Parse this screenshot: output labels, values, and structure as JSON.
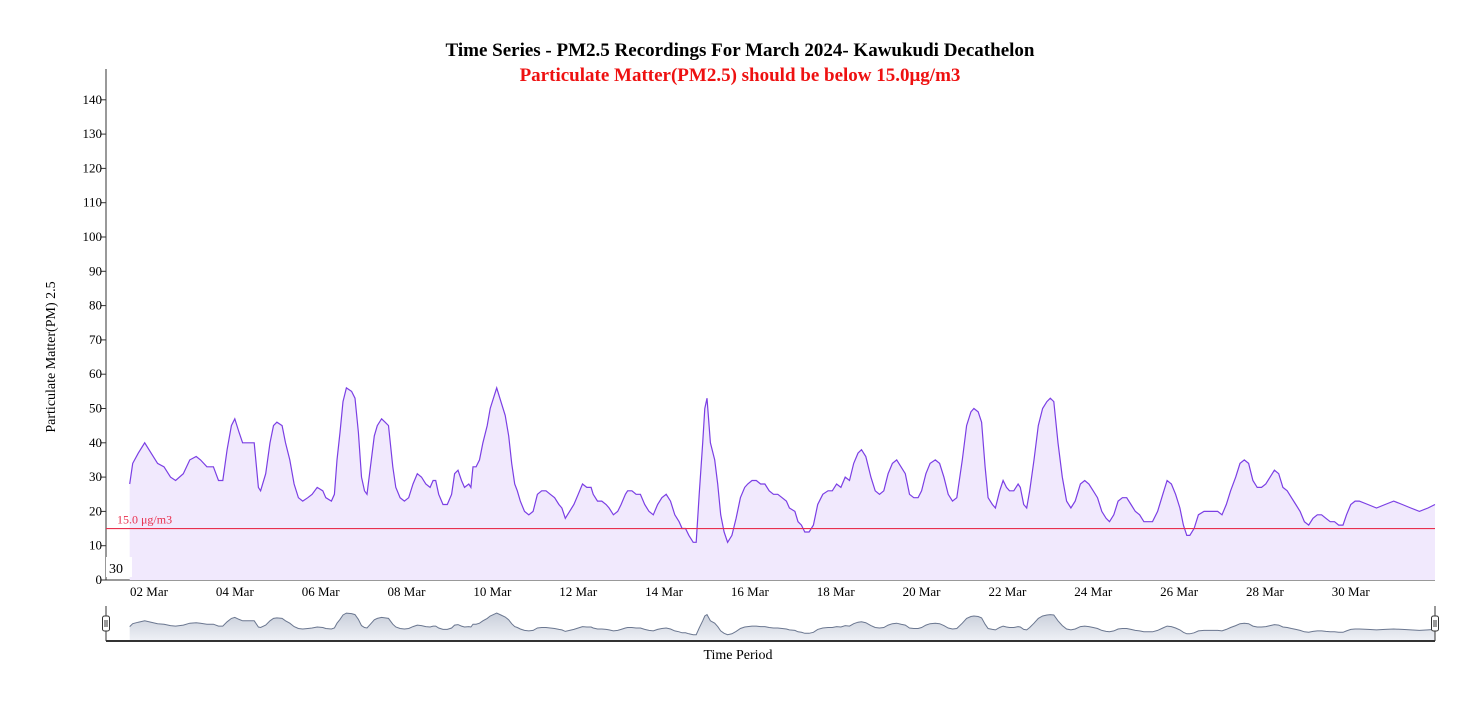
{
  "chart_data": {
    "type": "area",
    "title": "Time Series - PM2.5 Recordings For March 2024- Kawukudi Decathelon",
    "subtitle": "Particulate Matter(PM2.5) should be below 15.0μg/m3",
    "ylabel": "Particulate Matter(PM) 2.5",
    "xlabel": "Time Period",
    "ylim": [
      0,
      140
    ],
    "xlim_days": [
      1.55,
      32.0
    ],
    "yticks": [
      "0",
      "10",
      "20",
      "30",
      "40",
      "50",
      "60",
      "70",
      "80",
      "90",
      "100",
      "110",
      "120",
      "130",
      "140"
    ],
    "xticks": [
      {
        "day": 2,
        "label": "02 Mar"
      },
      {
        "day": 4,
        "label": "04 Mar"
      },
      {
        "day": 6,
        "label": "06 Mar"
      },
      {
        "day": 8,
        "label": "08 Mar"
      },
      {
        "day": 10,
        "label": "10 Mar"
      },
      {
        "day": 12,
        "label": "12 Mar"
      },
      {
        "day": 14,
        "label": "14 Mar"
      },
      {
        "day": 16,
        "label": "16 Mar"
      },
      {
        "day": 18,
        "label": "18 Mar"
      },
      {
        "day": 20,
        "label": "20 Mar"
      },
      {
        "day": 22,
        "label": "22 Mar"
      },
      {
        "day": 24,
        "label": "24 Mar"
      },
      {
        "day": 26,
        "label": "26 Mar"
      },
      {
        "day": 28,
        "label": "28 Mar"
      },
      {
        "day": 30,
        "label": "30 Mar"
      }
    ],
    "threshold": {
      "value": 15.0,
      "label": "15.0 μg/m3"
    },
    "hover_label": "30",
    "colors": {
      "line": "#7b3fe4",
      "fill": "#f1e9fd",
      "threshold": "#e8304e",
      "subtitle": "#ee1111",
      "navigator": "#6b7790"
    },
    "series": [
      {
        "points": [
          [
            1.55,
            28
          ],
          [
            1.62,
            34
          ],
          [
            1.75,
            37
          ],
          [
            1.9,
            40
          ],
          [
            2.05,
            37
          ],
          [
            2.2,
            34
          ],
          [
            2.35,
            33
          ],
          [
            2.5,
            30
          ],
          [
            2.62,
            29
          ],
          [
            2.8,
            31
          ],
          [
            2.95,
            35
          ],
          [
            3.1,
            36
          ],
          [
            3.2,
            35
          ],
          [
            3.35,
            33
          ],
          [
            3.5,
            33
          ],
          [
            3.62,
            29
          ],
          [
            3.72,
            29
          ],
          [
            3.82,
            38
          ],
          [
            3.92,
            45
          ],
          [
            4.0,
            47
          ],
          [
            4.1,
            43
          ],
          [
            4.18,
            40
          ],
          [
            4.35,
            40
          ],
          [
            4.45,
            40
          ],
          [
            4.55,
            27
          ],
          [
            4.6,
            26
          ],
          [
            4.72,
            31
          ],
          [
            4.82,
            40
          ],
          [
            4.9,
            45
          ],
          [
            4.98,
            46
          ],
          [
            5.1,
            45
          ],
          [
            5.18,
            40
          ],
          [
            5.28,
            35
          ],
          [
            5.38,
            28
          ],
          [
            5.48,
            24
          ],
          [
            5.58,
            23
          ],
          [
            5.7,
            24
          ],
          [
            5.8,
            25
          ],
          [
            5.92,
            27
          ],
          [
            6.05,
            26
          ],
          [
            6.12,
            24
          ],
          [
            6.25,
            23
          ],
          [
            6.32,
            25
          ],
          [
            6.38,
            35
          ],
          [
            6.45,
            43
          ],
          [
            6.52,
            52
          ],
          [
            6.6,
            56
          ],
          [
            6.72,
            55
          ],
          [
            6.8,
            53
          ],
          [
            6.88,
            43
          ],
          [
            6.95,
            30
          ],
          [
            7.02,
            26
          ],
          [
            7.08,
            25
          ],
          [
            7.18,
            35
          ],
          [
            7.25,
            42
          ],
          [
            7.32,
            45
          ],
          [
            7.42,
            47
          ],
          [
            7.5,
            46
          ],
          [
            7.58,
            45
          ],
          [
            7.68,
            33
          ],
          [
            7.75,
            27
          ],
          [
            7.85,
            24
          ],
          [
            7.95,
            23
          ],
          [
            8.05,
            24
          ],
          [
            8.15,
            28
          ],
          [
            8.25,
            31
          ],
          [
            8.35,
            30
          ],
          [
            8.45,
            28
          ],
          [
            8.55,
            27
          ],
          [
            8.62,
            29
          ],
          [
            8.68,
            29
          ],
          [
            8.75,
            25
          ],
          [
            8.85,
            22
          ],
          [
            8.95,
            22
          ],
          [
            9.05,
            25
          ],
          [
            9.12,
            31
          ],
          [
            9.2,
            32
          ],
          [
            9.28,
            29
          ],
          [
            9.35,
            27
          ],
          [
            9.45,
            28
          ],
          [
            9.5,
            27
          ],
          [
            9.55,
            33
          ],
          [
            9.62,
            33
          ],
          [
            9.7,
            35
          ],
          [
            9.78,
            40
          ],
          [
            9.88,
            45
          ],
          [
            9.95,
            50
          ],
          [
            10.05,
            54
          ],
          [
            10.1,
            56
          ],
          [
            10.2,
            52
          ],
          [
            10.3,
            48
          ],
          [
            10.38,
            42
          ],
          [
            10.45,
            34
          ],
          [
            10.52,
            28
          ],
          [
            10.58,
            26
          ],
          [
            10.65,
            23
          ],
          [
            10.75,
            20
          ],
          [
            10.85,
            19
          ],
          [
            10.95,
            20
          ],
          [
            11.05,
            25
          ],
          [
            11.15,
            26
          ],
          [
            11.25,
            26
          ],
          [
            11.35,
            25
          ],
          [
            11.45,
            24
          ],
          [
            11.55,
            22
          ],
          [
            11.62,
            21
          ],
          [
            11.7,
            18
          ],
          [
            11.8,
            20
          ],
          [
            11.9,
            22
          ],
          [
            12.0,
            25
          ],
          [
            12.1,
            28
          ],
          [
            12.2,
            27
          ],
          [
            12.3,
            27
          ],
          [
            12.35,
            25
          ],
          [
            12.45,
            23
          ],
          [
            12.55,
            23
          ],
          [
            12.65,
            22
          ],
          [
            12.72,
            21
          ],
          [
            12.82,
            19
          ],
          [
            12.92,
            20
          ],
          [
            13.0,
            22
          ],
          [
            13.1,
            25
          ],
          [
            13.15,
            26
          ],
          [
            13.25,
            26
          ],
          [
            13.35,
            25
          ],
          [
            13.45,
            25
          ],
          [
            13.55,
            22
          ],
          [
            13.65,
            20
          ],
          [
            13.75,
            19
          ],
          [
            13.85,
            22
          ],
          [
            13.95,
            24
          ],
          [
            14.05,
            25
          ],
          [
            14.15,
            23
          ],
          [
            14.25,
            19
          ],
          [
            14.35,
            17
          ],
          [
            14.42,
            15
          ],
          [
            14.5,
            15
          ],
          [
            14.58,
            13
          ],
          [
            14.68,
            11
          ],
          [
            14.75,
            11
          ],
          [
            14.82,
            25
          ],
          [
            14.9,
            40
          ],
          [
            14.95,
            50
          ],
          [
            15.0,
            53
          ],
          [
            15.08,
            40
          ],
          [
            15.18,
            35
          ],
          [
            15.25,
            28
          ],
          [
            15.32,
            19
          ],
          [
            15.4,
            14
          ],
          [
            15.48,
            11
          ],
          [
            15.58,
            13
          ],
          [
            15.68,
            18
          ],
          [
            15.78,
            24
          ],
          [
            15.88,
            27
          ],
          [
            15.95,
            28
          ],
          [
            16.05,
            29
          ],
          [
            16.15,
            29
          ],
          [
            16.25,
            28
          ],
          [
            16.35,
            28
          ],
          [
            16.45,
            26
          ],
          [
            16.55,
            25
          ],
          [
            16.65,
            25
          ],
          [
            16.75,
            24
          ],
          [
            16.85,
            23
          ],
          [
            16.92,
            21
          ],
          [
            17.05,
            20
          ],
          [
            17.12,
            17
          ],
          [
            17.2,
            16
          ],
          [
            17.28,
            14
          ],
          [
            17.38,
            14
          ],
          [
            17.48,
            16
          ],
          [
            17.58,
            22
          ],
          [
            17.7,
            25
          ],
          [
            17.82,
            26
          ],
          [
            17.92,
            26
          ],
          [
            18.02,
            28
          ],
          [
            18.12,
            27
          ],
          [
            18.22,
            30
          ],
          [
            18.32,
            29
          ],
          [
            18.42,
            34
          ],
          [
            18.52,
            37
          ],
          [
            18.6,
            38
          ],
          [
            18.7,
            36
          ],
          [
            18.82,
            30
          ],
          [
            18.92,
            26
          ],
          [
            19.02,
            25
          ],
          [
            19.12,
            26
          ],
          [
            19.22,
            31
          ],
          [
            19.32,
            34
          ],
          [
            19.42,
            35
          ],
          [
            19.52,
            33
          ],
          [
            19.62,
            31
          ],
          [
            19.72,
            25
          ],
          [
            19.82,
            24
          ],
          [
            19.92,
            24
          ],
          [
            20.0,
            26
          ],
          [
            20.1,
            31
          ],
          [
            20.2,
            34
          ],
          [
            20.32,
            35
          ],
          [
            20.42,
            34
          ],
          [
            20.52,
            30
          ],
          [
            20.62,
            25
          ],
          [
            20.72,
            23
          ],
          [
            20.82,
            24
          ],
          [
            20.95,
            35
          ],
          [
            21.05,
            45
          ],
          [
            21.15,
            49
          ],
          [
            21.22,
            50
          ],
          [
            21.32,
            49
          ],
          [
            21.4,
            46
          ],
          [
            21.48,
            33
          ],
          [
            21.55,
            24
          ],
          [
            21.65,
            22
          ],
          [
            21.72,
            21
          ],
          [
            21.82,
            26
          ],
          [
            21.9,
            29
          ],
          [
            21.98,
            27
          ],
          [
            22.05,
            26
          ],
          [
            22.15,
            26
          ],
          [
            22.25,
            28
          ],
          [
            22.3,
            27
          ],
          [
            22.38,
            22
          ],
          [
            22.45,
            21
          ],
          [
            22.52,
            26
          ],
          [
            22.62,
            35
          ],
          [
            22.72,
            45
          ],
          [
            22.82,
            50
          ],
          [
            22.92,
            52
          ],
          [
            23.0,
            53
          ],
          [
            23.08,
            52
          ],
          [
            23.18,
            40
          ],
          [
            23.28,
            30
          ],
          [
            23.38,
            23
          ],
          [
            23.48,
            21
          ],
          [
            23.58,
            23
          ],
          [
            23.7,
            28
          ],
          [
            23.8,
            29
          ],
          [
            23.9,
            28
          ],
          [
            24.0,
            26
          ],
          [
            24.1,
            24
          ],
          [
            24.2,
            20
          ],
          [
            24.3,
            18
          ],
          [
            24.38,
            17
          ],
          [
            24.48,
            19
          ],
          [
            24.58,
            23
          ],
          [
            24.68,
            24
          ],
          [
            24.78,
            24
          ],
          [
            24.88,
            22
          ],
          [
            24.98,
            20
          ],
          [
            25.08,
            19
          ],
          [
            25.18,
            17
          ],
          [
            25.28,
            17
          ],
          [
            25.38,
            17
          ],
          [
            25.5,
            20
          ],
          [
            25.62,
            25
          ],
          [
            25.72,
            29
          ],
          [
            25.82,
            28
          ],
          [
            25.92,
            25
          ],
          [
            26.02,
            21
          ],
          [
            26.1,
            16
          ],
          [
            26.18,
            13
          ],
          [
            26.25,
            13
          ],
          [
            26.35,
            15
          ],
          [
            26.45,
            19
          ],
          [
            26.58,
            20
          ],
          [
            26.7,
            20
          ],
          [
            26.8,
            20
          ],
          [
            26.9,
            20
          ],
          [
            27.0,
            19
          ],
          [
            27.1,
            22
          ],
          [
            27.2,
            26
          ],
          [
            27.32,
            30
          ],
          [
            27.42,
            34
          ],
          [
            27.52,
            35
          ],
          [
            27.62,
            34
          ],
          [
            27.72,
            29
          ],
          [
            27.82,
            27
          ],
          [
            27.92,
            27
          ],
          [
            28.02,
            28
          ],
          [
            28.12,
            30
          ],
          [
            28.22,
            32
          ],
          [
            28.32,
            31
          ],
          [
            28.42,
            27
          ],
          [
            28.52,
            26
          ],
          [
            28.62,
            24
          ],
          [
            28.72,
            22
          ],
          [
            28.82,
            20
          ],
          [
            28.92,
            17
          ],
          [
            29.02,
            16
          ],
          [
            29.12,
            18
          ],
          [
            29.22,
            19
          ],
          [
            29.32,
            19
          ],
          [
            29.42,
            18
          ],
          [
            29.52,
            17
          ],
          [
            29.62,
            17
          ],
          [
            29.72,
            16
          ],
          [
            29.82,
            16
          ],
          [
            29.9,
            19
          ],
          [
            30.0,
            22
          ],
          [
            30.1,
            23
          ],
          [
            30.2,
            23
          ],
          [
            30.4,
            22
          ],
          [
            30.6,
            21
          ],
          [
            30.8,
            22
          ],
          [
            31.0,
            23
          ],
          [
            31.2,
            22
          ],
          [
            31.4,
            21
          ],
          [
            31.6,
            20
          ],
          [
            31.8,
            21
          ],
          [
            32.0,
            22
          ]
        ]
      }
    ]
  }
}
